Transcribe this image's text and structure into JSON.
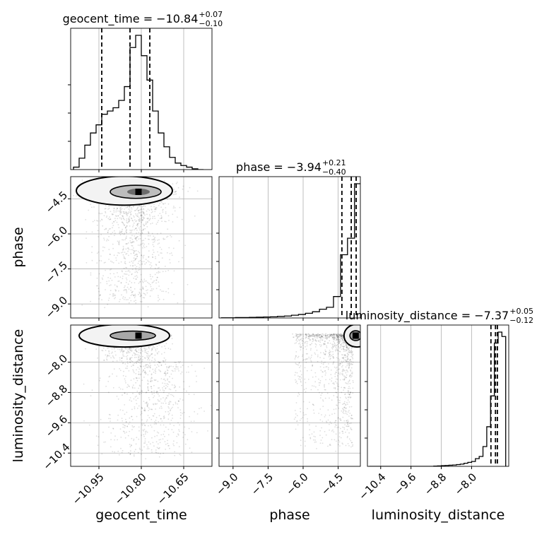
{
  "chart_data": {
    "type": "corner",
    "grid": true,
    "parameters": [
      "geocent_time",
      "phase",
      "luminosity_distance"
    ],
    "axis_labels": {
      "geocent_time": "geocent_time",
      "phase": "phase",
      "luminosity_distance": "luminosity_distance"
    },
    "axes": {
      "geocent_time": {
        "range": [
          -11.05,
          -10.55
        ],
        "ticks": [
          -10.95,
          -10.8,
          -10.65
        ],
        "tick_labels": [
          "−10.95",
          "−10.80",
          "−10.65"
        ]
      },
      "phase": {
        "range": [
          -9.6,
          -3.55
        ],
        "ticks": [
          -9.0,
          -7.5,
          -6.0,
          -4.5
        ],
        "tick_labels": [
          "−9.0",
          "−7.5",
          "−6.0",
          "−4.5"
        ]
      },
      "luminosity_distance": {
        "range": [
          -10.75,
          -7.02
        ],
        "ticks": [
          -10.4,
          -9.6,
          -8.8,
          -8.0
        ],
        "tick_labels": [
          "−10.4",
          "−9.6",
          "−8.8",
          "−8.0"
        ]
      }
    },
    "summaries": [
      {
        "parameter": "geocent_time",
        "label": "geocent_time = −10.84",
        "sup": "+0.07",
        "sub": "−0.10",
        "median": -10.84,
        "lower": -10.94,
        "upper": -10.77
      },
      {
        "parameter": "phase",
        "label": "phase = −3.94",
        "sup": "+0.21",
        "sub": "−0.40",
        "median": -3.94,
        "lower": -4.34,
        "upper": -3.73
      },
      {
        "parameter": "luminosity_distance",
        "label": "luminosity_distance = −7.37",
        "sup": "+0.05",
        "sub": "−0.12",
        "median": -7.37,
        "lower": -7.49,
        "upper": -7.32
      }
    ],
    "histograms": {
      "geocent_time": {
        "bin_edges": [
          -11.04,
          -11.02,
          -11.0,
          -10.98,
          -10.96,
          -10.94,
          -10.92,
          -10.9,
          -10.88,
          -10.86,
          -10.84,
          -10.82,
          -10.8,
          -10.78,
          -10.76,
          -10.74,
          -10.72,
          -10.7,
          -10.68,
          -10.66,
          -10.64,
          -10.62,
          -10.6,
          -10.58
        ],
        "counts": [
          3,
          14,
          30,
          45,
          55,
          68,
          72,
          76,
          85,
          102,
          150,
          165,
          140,
          110,
          72,
          45,
          28,
          15,
          8,
          5,
          3,
          1,
          0
        ]
      },
      "phase": {
        "bin_edges": [
          -9.5,
          -9.2,
          -8.9,
          -8.6,
          -8.3,
          -8.0,
          -7.7,
          -7.4,
          -7.1,
          -6.8,
          -6.5,
          -6.2,
          -5.9,
          -5.6,
          -5.3,
          -5.0,
          -4.7,
          -4.4,
          -4.1,
          -3.8,
          -3.5
        ],
        "counts": [
          1,
          1,
          2,
          2,
          3,
          4,
          5,
          6,
          8,
          10,
          14,
          18,
          24,
          32,
          45,
          55,
          110,
          325,
          410,
          690,
          120
        ]
      },
      "luminosity_distance": {
        "bin_edges": [
          -10.7,
          -10.6,
          -10.5,
          -10.4,
          -10.3,
          -10.2,
          -10.1,
          -10.0,
          -9.9,
          -9.8,
          -9.7,
          -9.6,
          -9.5,
          -9.4,
          -9.3,
          -9.2,
          -9.1,
          -9.0,
          -8.9,
          -8.8,
          -8.7,
          -8.6,
          -8.5,
          -8.4,
          -8.3,
          -8.2,
          -8.1,
          -8.0,
          -7.9,
          -7.8,
          -7.7,
          -7.6,
          -7.5,
          -7.4,
          -7.3,
          -7.2,
          -7.1
        ],
        "counts": [
          0,
          0,
          0,
          0,
          0,
          0,
          0,
          0,
          0,
          0,
          0,
          0,
          0,
          0,
          0,
          0,
          0,
          1,
          2,
          3,
          4,
          5,
          6,
          8,
          10,
          14,
          18,
          22,
          35,
          45,
          90,
          180,
          320,
          560,
          610,
          590
        ]
      }
    },
    "joint_peaks": [
      {
        "x": "geocent_time",
        "y": "phase",
        "peak": [
          -10.81,
          -4.2
        ]
      },
      {
        "x": "geocent_time",
        "y": "luminosity_distance",
        "peak": [
          -10.81,
          -7.3
        ]
      },
      {
        "x": "phase",
        "y": "luminosity_distance",
        "peak": [
          -3.75,
          -7.3
        ]
      }
    ]
  }
}
